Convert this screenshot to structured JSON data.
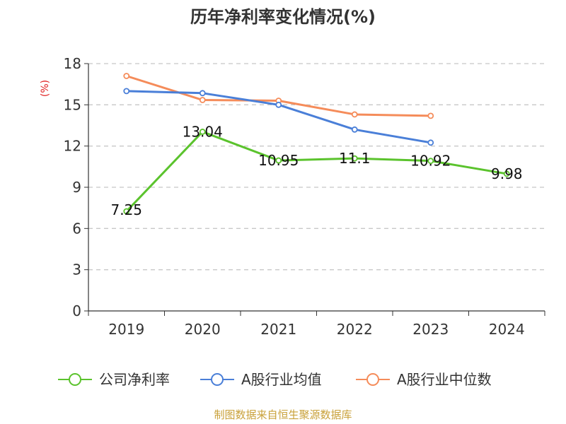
{
  "chart_data": {
    "type": "line",
    "title": "历年净利率变化情况(%)",
    "ylabel": "(%)",
    "categories": [
      "2019",
      "2020",
      "2021",
      "2022",
      "2023",
      "2024"
    ],
    "ylim": [
      0,
      18
    ],
    "yticks": [
      0,
      3,
      6,
      9,
      12,
      15,
      18
    ],
    "grid": true,
    "legend_position": "bottom",
    "series": [
      {
        "name": "公司净利率",
        "color": "#5bc32d",
        "values": [
          7.25,
          13.04,
          10.95,
          11.1,
          10.92,
          9.98
        ],
        "labels": [
          "7.25",
          "13.04",
          "10.95",
          "11.1",
          "10.92",
          "9.98"
        ]
      },
      {
        "name": "A股行业均值",
        "color": "#4a7fd8",
        "values": [
          16.0,
          15.85,
          15.0,
          13.2,
          12.25,
          null
        ]
      },
      {
        "name": "A股行业中位数",
        "color": "#f58c5a",
        "values": [
          17.1,
          15.35,
          15.3,
          14.3,
          14.2,
          null
        ]
      }
    ]
  },
  "source": "制图数据来自恒生聚源数据库"
}
